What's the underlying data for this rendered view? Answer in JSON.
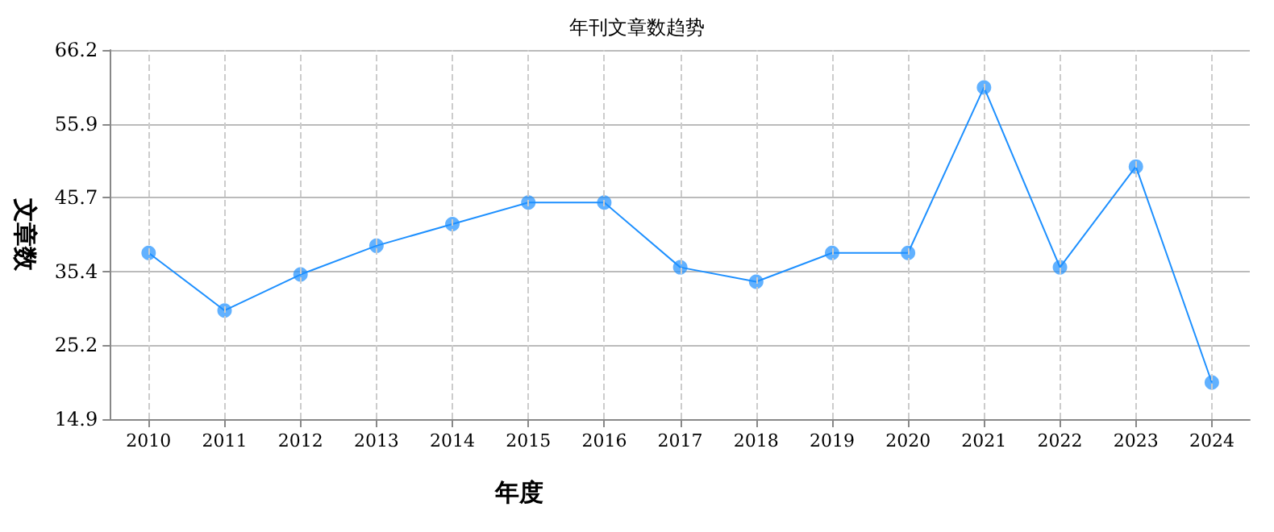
{
  "chart_data": {
    "type": "line",
    "title": "年刊文章数趋势",
    "xlabel": "年度",
    "ylabel": "文章数",
    "categories": [
      "2010",
      "2011",
      "2012",
      "2013",
      "2014",
      "2015",
      "2016",
      "2017",
      "2018",
      "2019",
      "2020",
      "2021",
      "2022",
      "2023",
      "2024"
    ],
    "series": [
      {
        "color": "#1e90ff",
        "values": [
          38,
          30,
          35,
          39,
          42,
          45,
          45,
          36,
          34,
          38,
          38,
          61,
          36,
          50,
          20
        ]
      }
    ],
    "ylim": [
      14.9,
      66.2
    ],
    "yticks": [
      {
        "value": 14.9,
        "label": "14.9"
      },
      {
        "value": 25.16,
        "label": "25.2"
      },
      {
        "value": 35.42,
        "label": "35.4"
      },
      {
        "value": 45.68,
        "label": "45.7"
      },
      {
        "value": 55.94,
        "label": "55.9"
      },
      {
        "value": 66.2,
        "label": "66.2"
      }
    ],
    "grid": true,
    "marker": "circle",
    "line_style": "solid"
  }
}
